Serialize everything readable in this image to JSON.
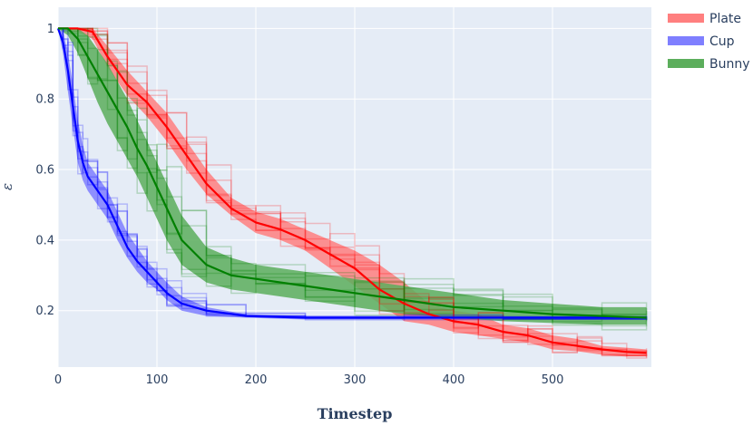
{
  "chart_data": {
    "type": "line",
    "title": "",
    "xlabel": "Timestep",
    "ylabel": "ε",
    "xlim": [
      0,
      600
    ],
    "ylim": [
      0.04,
      1.06
    ],
    "xticks": [
      0,
      100,
      200,
      300,
      400,
      500
    ],
    "yticks": [
      0.2,
      0.4,
      0.6,
      0.8,
      1
    ],
    "grid": true,
    "background": "#e5ecf6",
    "legend_position": "top-right",
    "series": [
      {
        "name": "Plate",
        "color": "#ff0000",
        "band_color": "#ff7f7f",
        "x": [
          0,
          20,
          35,
          50,
          70,
          90,
          110,
          130,
          150,
          175,
          200,
          225,
          250,
          275,
          300,
          325,
          350,
          375,
          400,
          425,
          450,
          475,
          500,
          525,
          550,
          575,
          595
        ],
        "mean": [
          1.0,
          1.0,
          0.99,
          0.92,
          0.84,
          0.79,
          0.72,
          0.64,
          0.56,
          0.49,
          0.45,
          0.43,
          0.4,
          0.36,
          0.32,
          0.26,
          0.22,
          0.19,
          0.17,
          0.16,
          0.14,
          0.13,
          0.11,
          0.1,
          0.09,
          0.083,
          0.08
        ],
        "lower": [
          1.0,
          0.99,
          0.97,
          0.89,
          0.81,
          0.75,
          0.68,
          0.6,
          0.53,
          0.47,
          0.42,
          0.4,
          0.37,
          0.32,
          0.27,
          0.22,
          0.17,
          0.16,
          0.14,
          0.13,
          0.12,
          0.11,
          0.09,
          0.085,
          0.075,
          0.07,
          0.07
        ],
        "upper": [
          1.0,
          1.0,
          1.0,
          0.95,
          0.88,
          0.82,
          0.76,
          0.68,
          0.6,
          0.52,
          0.48,
          0.46,
          0.43,
          0.4,
          0.37,
          0.33,
          0.28,
          0.22,
          0.2,
          0.19,
          0.16,
          0.15,
          0.13,
          0.12,
          0.1,
          0.095,
          0.09
        ]
      },
      {
        "name": "Cup",
        "color": "#0000ff",
        "band_color": "#7f7fff",
        "x": [
          0,
          5,
          10,
          15,
          20,
          25,
          30,
          40,
          50,
          60,
          70,
          80,
          90,
          100,
          110,
          125,
          150,
          190,
          250,
          350,
          450,
          595
        ],
        "mean": [
          1.0,
          0.96,
          0.88,
          0.78,
          0.68,
          0.62,
          0.58,
          0.54,
          0.5,
          0.44,
          0.38,
          0.34,
          0.31,
          0.28,
          0.25,
          0.22,
          0.2,
          0.185,
          0.18,
          0.18,
          0.18,
          0.18
        ],
        "lower": [
          1.0,
          0.93,
          0.82,
          0.72,
          0.62,
          0.57,
          0.54,
          0.5,
          0.46,
          0.4,
          0.35,
          0.31,
          0.28,
          0.26,
          0.23,
          0.2,
          0.185,
          0.18,
          0.175,
          0.175,
          0.175,
          0.175
        ],
        "upper": [
          1.0,
          0.99,
          0.93,
          0.84,
          0.74,
          0.67,
          0.62,
          0.58,
          0.54,
          0.48,
          0.42,
          0.38,
          0.34,
          0.31,
          0.28,
          0.24,
          0.21,
          0.19,
          0.185,
          0.185,
          0.185,
          0.185
        ]
      },
      {
        "name": "Bunny",
        "color": "#008000",
        "band_color": "#5cae5c",
        "x": [
          0,
          10,
          20,
          30,
          40,
          50,
          60,
          70,
          80,
          90,
          100,
          110,
          125,
          150,
          175,
          200,
          250,
          300,
          350,
          400,
          450,
          500,
          550,
          595
        ],
        "mean": [
          1.0,
          1.0,
          0.97,
          0.92,
          0.87,
          0.82,
          0.77,
          0.72,
          0.66,
          0.61,
          0.55,
          0.49,
          0.4,
          0.33,
          0.3,
          0.29,
          0.27,
          0.25,
          0.23,
          0.21,
          0.2,
          0.19,
          0.185,
          0.18
        ],
        "lower": [
          1.0,
          0.98,
          0.93,
          0.86,
          0.79,
          0.73,
          0.68,
          0.63,
          0.58,
          0.52,
          0.46,
          0.4,
          0.33,
          0.28,
          0.26,
          0.25,
          0.23,
          0.21,
          0.19,
          0.18,
          0.17,
          0.165,
          0.16,
          0.16
        ],
        "upper": [
          1.0,
          1.0,
          1.0,
          0.98,
          0.94,
          0.9,
          0.85,
          0.8,
          0.74,
          0.68,
          0.62,
          0.56,
          0.47,
          0.38,
          0.35,
          0.33,
          0.31,
          0.29,
          0.27,
          0.25,
          0.23,
          0.22,
          0.21,
          0.21
        ]
      }
    ]
  }
}
